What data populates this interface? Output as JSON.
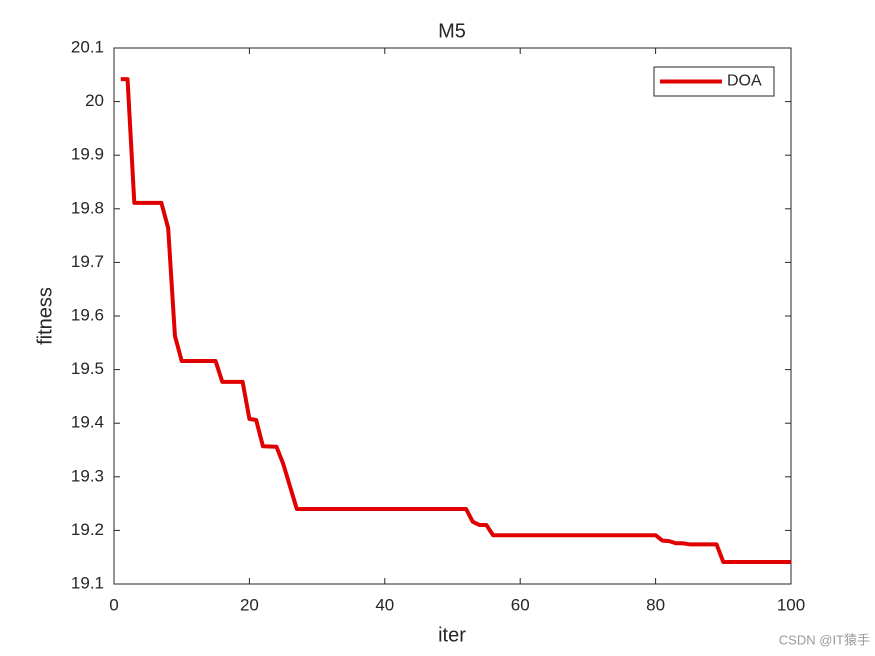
{
  "chart_data": {
    "type": "line",
    "title": "M5",
    "x_label": "iter",
    "y_label": "fitness",
    "x": [
      1,
      2,
      3,
      7,
      8,
      9,
      10,
      15,
      16,
      19,
      20,
      21,
      22,
      24,
      25,
      27,
      52,
      53,
      54,
      55,
      56,
      80,
      81,
      82,
      83,
      84,
      85,
      89,
      90,
      100
    ],
    "series": [
      {
        "name": "DOA",
        "color": "#e00000",
        "values": [
          20.042,
          20.042,
          19.811,
          19.811,
          19.764,
          19.563,
          19.516,
          19.516,
          19.477,
          19.477,
          19.408,
          19.406,
          19.357,
          19.356,
          19.324,
          19.24,
          19.24,
          19.216,
          19.21,
          19.21,
          19.191,
          19.191,
          19.181,
          19.18,
          19.176,
          19.176,
          19.174,
          19.174,
          19.141,
          19.141
        ]
      }
    ],
    "xlim": [
      0,
      100
    ],
    "xticks": [
      0,
      20,
      40,
      60,
      80,
      100
    ],
    "ylim": [
      19.1,
      20.1
    ],
    "yticks": [
      19.1,
      19.2,
      19.3,
      19.4,
      19.5,
      19.6,
      19.7,
      19.8,
      19.9,
      20,
      20.1
    ],
    "legend": "top-right",
    "grid": false
  },
  "watermark": "CSDN @IT猿手"
}
